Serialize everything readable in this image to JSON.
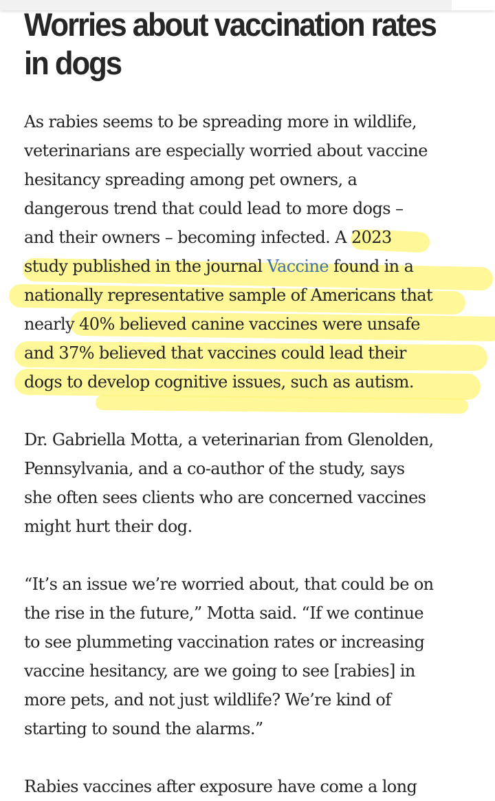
{
  "headline": "Worries about vaccination rates in dogs",
  "highlight_color": "#fff475",
  "link_color": "#3f6fab",
  "paragraphs": [
    {
      "lines": [
        "As rabies seems to be spreading more in wildlife,",
        "veterinarians are especially worried about vaccine",
        "hesitancy spreading among pet owners, a",
        "dangerous trend that could lead to more dogs –",
        "and their owners – becoming infected. A 2023",
        {
          "before": "study published in the journal ",
          "link": "Vaccine",
          "after": " found in a"
        },
        "nationally representative sample of Americans that",
        "nearly 40% believed canine vaccines were unsafe",
        "and 37% believed that vaccines could lead their",
        "dogs to develop cognitive issues, such as autism."
      ]
    },
    {
      "lines": [
        "Dr. Gabriella Motta, a veterinarian from Glenolden,",
        "Pennsylvania, and a co-author of the study, says",
        "she often sees clients who are concerned vaccines",
        "might hurt their dog."
      ]
    },
    {
      "lines": [
        "“It’s an issue we’re worried about, that could be on",
        "the rise in the future,” Motta said. “If we continue",
        "to see plummeting vaccination rates or increasing",
        "vaccine hesitancy, are we going to see [rabies] in",
        "more pets, and not just wildlife? We’re kind of",
        "starting to sound the alarms.”"
      ]
    },
    {
      "lines": [
        "Rabies vaccines after exposure have come a long"
      ]
    }
  ]
}
